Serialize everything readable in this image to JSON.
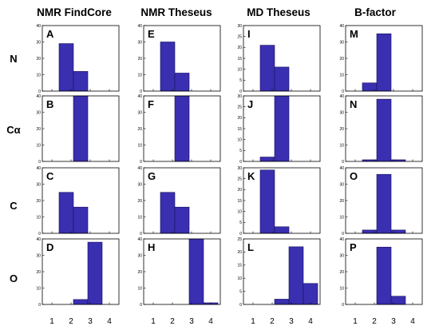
{
  "figure": {
    "column_titles": [
      "NMR FindCore",
      "NMR Theseus",
      "MD Theseus",
      "B-factor"
    ],
    "row_labels": [
      "N",
      "Cα",
      "C",
      "O"
    ],
    "bar_color": "#3a2fb0",
    "bar_edge_color": "#14105a",
    "x_tick_labels": [
      "1",
      "2",
      "3",
      "4"
    ]
  },
  "chart_data": {
    "type": "bar",
    "layout": "4x4 grid of histograms",
    "x_ticks": [
      1,
      2,
      3,
      4
    ],
    "xlim": [
      0.5,
      4.5
    ],
    "bin_width": 0.75,
    "panels": [
      {
        "letter": "A",
        "row": 0,
        "col": 0,
        "ylim": [
          0,
          40
        ],
        "y_ticks": [
          0,
          10,
          20,
          30,
          40
        ],
        "bars": [
          {
            "x": 1.75,
            "value": 29
          },
          {
            "x": 2.5,
            "value": 12
          }
        ]
      },
      {
        "letter": "E",
        "row": 0,
        "col": 1,
        "ylim": [
          0,
          40
        ],
        "y_ticks": [
          0,
          10,
          20,
          30,
          40
        ],
        "bars": [
          {
            "x": 1.75,
            "value": 30
          },
          {
            "x": 2.5,
            "value": 11
          }
        ]
      },
      {
        "letter": "I",
        "row": 0,
        "col": 2,
        "ylim": [
          0,
          30
        ],
        "y_ticks": [
          0,
          5,
          10,
          15,
          20,
          25,
          30
        ],
        "bars": [
          {
            "x": 1.75,
            "value": 21
          },
          {
            "x": 2.5,
            "value": 11
          }
        ]
      },
      {
        "letter": "M",
        "row": 0,
        "col": 3,
        "ylim": [
          0,
          40
        ],
        "y_ticks": [
          0,
          10,
          20,
          30,
          40
        ],
        "bars": [
          {
            "x": 1.75,
            "value": 5
          },
          {
            "x": 2.5,
            "value": 35
          }
        ]
      },
      {
        "letter": "B",
        "row": 1,
        "col": 0,
        "ylim": [
          0,
          40
        ],
        "y_ticks": [
          0,
          10,
          20,
          30,
          40
        ],
        "bars": [
          {
            "x": 2.5,
            "value": 40
          }
        ]
      },
      {
        "letter": "F",
        "row": 1,
        "col": 1,
        "ylim": [
          0,
          40
        ],
        "y_ticks": [
          0,
          10,
          20,
          30,
          40
        ],
        "bars": [
          {
            "x": 2.5,
            "value": 40
          }
        ]
      },
      {
        "letter": "J",
        "row": 1,
        "col": 2,
        "ylim": [
          0,
          30
        ],
        "y_ticks": [
          0,
          5,
          10,
          15,
          20,
          25,
          30
        ],
        "bars": [
          {
            "x": 1.75,
            "value": 2
          },
          {
            "x": 2.5,
            "value": 30
          }
        ]
      },
      {
        "letter": "N",
        "row": 1,
        "col": 3,
        "ylim": [
          0,
          40
        ],
        "y_ticks": [
          0,
          10,
          20,
          30,
          40
        ],
        "bars": [
          {
            "x": 1.75,
            "value": 1
          },
          {
            "x": 2.5,
            "value": 38
          },
          {
            "x": 3.25,
            "value": 1
          }
        ]
      },
      {
        "letter": "C",
        "row": 2,
        "col": 0,
        "ylim": [
          0,
          40
        ],
        "y_ticks": [
          0,
          10,
          20,
          30,
          40
        ],
        "bars": [
          {
            "x": 1.75,
            "value": 25
          },
          {
            "x": 2.5,
            "value": 16
          }
        ]
      },
      {
        "letter": "G",
        "row": 2,
        "col": 1,
        "ylim": [
          0,
          40
        ],
        "y_ticks": [
          0,
          10,
          20,
          30,
          40
        ],
        "bars": [
          {
            "x": 1.75,
            "value": 25
          },
          {
            "x": 2.5,
            "value": 16
          }
        ]
      },
      {
        "letter": "K",
        "row": 2,
        "col": 2,
        "ylim": [
          0,
          30
        ],
        "y_ticks": [
          0,
          5,
          10,
          15,
          20,
          25,
          30
        ],
        "bars": [
          {
            "x": 1.75,
            "value": 29
          },
          {
            "x": 2.5,
            "value": 3
          }
        ]
      },
      {
        "letter": "O",
        "row": 2,
        "col": 3,
        "ylim": [
          0,
          40
        ],
        "y_ticks": [
          0,
          10,
          20,
          30,
          40
        ],
        "bars": [
          {
            "x": 1.75,
            "value": 2
          },
          {
            "x": 2.5,
            "value": 36
          },
          {
            "x": 3.25,
            "value": 2
          }
        ]
      },
      {
        "letter": "D",
        "row": 3,
        "col": 0,
        "ylim": [
          0,
          40
        ],
        "y_ticks": [
          0,
          10,
          20,
          30,
          40
        ],
        "bars": [
          {
            "x": 2.5,
            "value": 3
          },
          {
            "x": 3.25,
            "value": 38
          }
        ]
      },
      {
        "letter": "H",
        "row": 3,
        "col": 1,
        "ylim": [
          0,
          40
        ],
        "y_ticks": [
          0,
          10,
          20,
          30,
          40
        ],
        "bars": [
          {
            "x": 3.25,
            "value": 40
          },
          {
            "x": 4.0,
            "value": 1
          }
        ]
      },
      {
        "letter": "L",
        "row": 3,
        "col": 2,
        "ylim": [
          0,
          25
        ],
        "y_ticks": [
          0,
          5,
          10,
          15,
          20,
          25
        ],
        "bars": [
          {
            "x": 2.5,
            "value": 2
          },
          {
            "x": 3.25,
            "value": 22
          },
          {
            "x": 4.0,
            "value": 8
          }
        ]
      },
      {
        "letter": "P",
        "row": 3,
        "col": 3,
        "ylim": [
          0,
          40
        ],
        "y_ticks": [
          0,
          10,
          20,
          30,
          40
        ],
        "bars": [
          {
            "x": 2.5,
            "value": 35
          },
          {
            "x": 3.25,
            "value": 5
          }
        ]
      }
    ]
  }
}
